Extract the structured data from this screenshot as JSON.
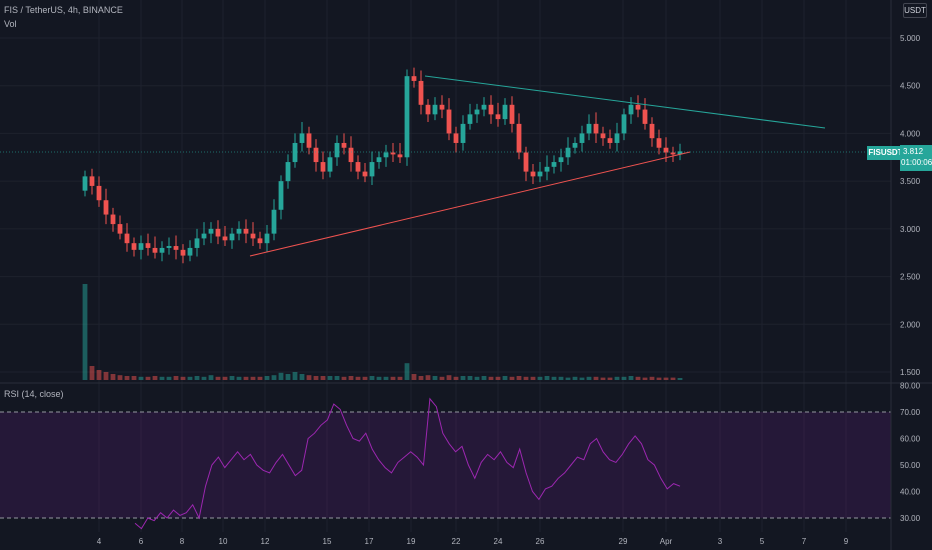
{
  "header": {
    "symbol_line": "FIS / TetherUS, 4h, BINANCE",
    "vol_label": "Vol",
    "currency_button": "USDT",
    "rsi_label": "RSI (14, close)"
  },
  "price_tag": {
    "symbol": "FISUSDT",
    "price": "3.812",
    "countdown": "01:00:06"
  },
  "colors": {
    "background": "#131722",
    "up": "#26a69a",
    "down": "#ef5350",
    "support_line": "#ef5350",
    "resistance_line": "#26a69a",
    "rsi_line": "#9c27b0",
    "rsi_band": "#7b1fa2"
  },
  "chart_data": [
    {
      "type": "candlestick",
      "title": "FIS / TetherUS, 4h, BINANCE",
      "x_ticks": [
        "4",
        "6",
        "8",
        "10",
        "12",
        "15",
        "17",
        "19",
        "22",
        "24",
        "26",
        "29",
        "Apr",
        "3",
        "5",
        "7",
        "9"
      ],
      "y_ticks": [
        "5.000",
        "4.500",
        "4.000",
        "3.500",
        "3.000",
        "2.500",
        "2.000",
        "1.500"
      ],
      "ylim": [
        1.4,
        5.2
      ],
      "last_price": 3.812,
      "close_series": [
        3.55,
        3.45,
        3.3,
        3.15,
        3.05,
        2.95,
        2.85,
        2.78,
        2.85,
        2.8,
        2.75,
        2.8,
        2.82,
        2.78,
        2.72,
        2.8,
        2.9,
        2.95,
        3.0,
        2.92,
        2.88,
        2.95,
        3.0,
        2.95,
        2.9,
        2.85,
        2.95,
        3.2,
        3.5,
        3.7,
        3.9,
        4.0,
        3.85,
        3.7,
        3.6,
        3.75,
        3.9,
        3.85,
        3.7,
        3.6,
        3.55,
        3.7,
        3.75,
        3.8,
        3.78,
        3.75,
        4.6,
        4.55,
        4.3,
        4.2,
        4.3,
        4.25,
        4.0,
        3.9,
        4.1,
        4.2,
        4.25,
        4.3,
        4.2,
        4.15,
        4.3,
        4.1,
        3.8,
        3.6,
        3.55,
        3.6,
        3.65,
        3.7,
        3.75,
        3.85,
        3.9,
        4.0,
        4.1,
        4.0,
        3.95,
        3.9,
        4.0,
        4.2,
        4.3,
        4.25,
        4.1,
        3.95,
        3.85,
        3.8,
        3.78,
        3.812
      ],
      "volume": [
        2.4,
        0.35,
        0.25,
        0.2,
        0.15,
        0.12,
        0.1,
        0.1,
        0.08,
        0.08,
        0.1,
        0.08,
        0.08,
        0.1,
        0.08,
        0.08,
        0.1,
        0.08,
        0.12,
        0.08,
        0.08,
        0.1,
        0.08,
        0.08,
        0.08,
        0.08,
        0.1,
        0.12,
        0.18,
        0.15,
        0.2,
        0.15,
        0.12,
        0.1,
        0.1,
        0.1,
        0.1,
        0.08,
        0.1,
        0.08,
        0.08,
        0.1,
        0.08,
        0.08,
        0.08,
        0.08,
        0.42,
        0.15,
        0.1,
        0.12,
        0.1,
        0.08,
        0.12,
        0.08,
        0.1,
        0.1,
        0.08,
        0.1,
        0.08,
        0.08,
        0.1,
        0.08,
        0.1,
        0.08,
        0.08,
        0.08,
        0.1,
        0.08,
        0.08,
        0.06,
        0.08,
        0.06,
        0.08,
        0.08,
        0.06,
        0.06,
        0.08,
        0.08,
        0.1,
        0.08,
        0.06,
        0.08,
        0.06,
        0.06,
        0.06,
        0.05
      ]
    },
    {
      "type": "line",
      "title": "RSI (14, close)",
      "y_ticks": [
        "80.00",
        "70.00",
        "60.00",
        "50.00",
        "40.00",
        "30.00"
      ],
      "ylim": [
        26,
        81
      ],
      "bands": [
        30,
        70
      ],
      "values": [
        28,
        26,
        30,
        29,
        32,
        30,
        33,
        31,
        32,
        35,
        30,
        42,
        50,
        53,
        49,
        52,
        55,
        52,
        54,
        50,
        48,
        47,
        51,
        54,
        50,
        46,
        48,
        60,
        62,
        65,
        67,
        73,
        71,
        65,
        60,
        59,
        62,
        56,
        52,
        49,
        47,
        51,
        53,
        55,
        53,
        50,
        75,
        72,
        62,
        58,
        55,
        57,
        50,
        45,
        51,
        54,
        52,
        55,
        51,
        49,
        56,
        47,
        40,
        37,
        41,
        42,
        45,
        47,
        50,
        53,
        52,
        58,
        60,
        55,
        52,
        51,
        54,
        58,
        61,
        58,
        52,
        50,
        45,
        41,
        43,
        42
      ]
    }
  ]
}
